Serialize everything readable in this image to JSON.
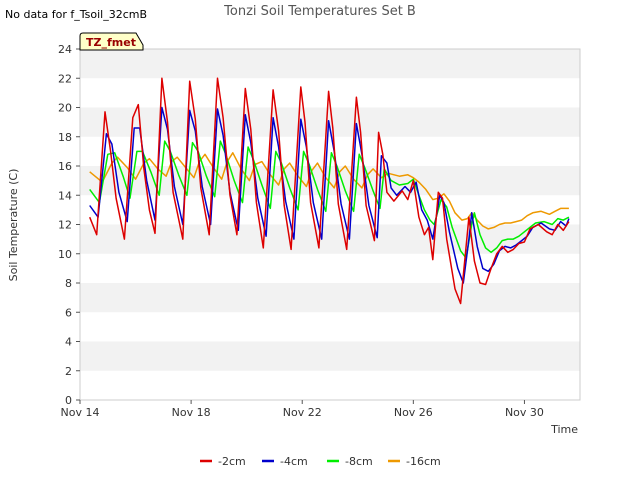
{
  "header": {
    "no_data_note": "No data for f_Tsoil_32cmB",
    "tag": "TZ_fmet"
  },
  "chart_data": {
    "type": "line",
    "title": "Tonzi Soil Temperatures Set B",
    "xlabel": "Time",
    "ylabel": "Soil Temperature (C)",
    "xlim": [
      0,
      18
    ],
    "ylim": [
      0,
      24
    ],
    "x_ticks": [
      {
        "value": 0,
        "label": "Nov 14"
      },
      {
        "value": 4,
        "label": "Nov 18"
      },
      {
        "value": 8,
        "label": "Nov 22"
      },
      {
        "value": 12,
        "label": "Nov 26"
      },
      {
        "value": 16,
        "label": "Nov 30"
      }
    ],
    "y_ticks": [
      0,
      2,
      4,
      6,
      8,
      10,
      12,
      14,
      16,
      18,
      20,
      22,
      24
    ],
    "grid": "horizontal bands",
    "legend": "bottom",
    "series": [
      {
        "name": "-2cm",
        "color": "#dd0000",
        "points": [
          [
            0.35,
            12.5
          ],
          [
            0.6,
            11.3
          ],
          [
            0.9,
            19.7
          ],
          [
            1.1,
            17.0
          ],
          [
            1.3,
            13.8
          ],
          [
            1.6,
            11.0
          ],
          [
            1.9,
            19.3
          ],
          [
            2.1,
            20.2
          ],
          [
            2.3,
            15.8
          ],
          [
            2.5,
            13.0
          ],
          [
            2.7,
            11.4
          ],
          [
            2.95,
            22.0
          ],
          [
            3.15,
            19.0
          ],
          [
            3.35,
            14.2
          ],
          [
            3.7,
            11.0
          ],
          [
            3.95,
            21.8
          ],
          [
            4.15,
            19.2
          ],
          [
            4.35,
            14.5
          ],
          [
            4.65,
            11.3
          ],
          [
            4.95,
            22.0
          ],
          [
            5.15,
            19.3
          ],
          [
            5.4,
            14.0
          ],
          [
            5.65,
            11.3
          ],
          [
            5.95,
            21.3
          ],
          [
            6.15,
            18.5
          ],
          [
            6.35,
            13.5
          ],
          [
            6.6,
            10.4
          ],
          [
            6.95,
            21.2
          ],
          [
            7.15,
            18.4
          ],
          [
            7.35,
            13.3
          ],
          [
            7.6,
            10.3
          ],
          [
            7.95,
            21.4
          ],
          [
            8.1,
            19.0
          ],
          [
            8.3,
            13.5
          ],
          [
            8.6,
            10.4
          ],
          [
            8.95,
            21.1
          ],
          [
            9.1,
            18.6
          ],
          [
            9.3,
            13.4
          ],
          [
            9.6,
            10.3
          ],
          [
            9.95,
            20.7
          ],
          [
            10.1,
            18.3
          ],
          [
            10.3,
            13.3
          ],
          [
            10.6,
            10.9
          ],
          [
            10.75,
            18.3
          ],
          [
            10.9,
            16.8
          ],
          [
            11.05,
            14.2
          ],
          [
            11.3,
            13.6
          ],
          [
            11.6,
            14.3
          ],
          [
            11.8,
            13.7
          ],
          [
            12.0,
            15.0
          ],
          [
            12.2,
            12.5
          ],
          [
            12.4,
            11.3
          ],
          [
            12.55,
            11.8
          ],
          [
            12.7,
            9.6
          ],
          [
            12.9,
            14.2
          ],
          [
            13.05,
            13.8
          ],
          [
            13.2,
            11.0
          ],
          [
            13.5,
            7.6
          ],
          [
            13.7,
            6.6
          ],
          [
            13.9,
            10.5
          ],
          [
            14.0,
            12.5
          ],
          [
            14.2,
            9.5
          ],
          [
            14.4,
            8.0
          ],
          [
            14.6,
            7.9
          ],
          [
            14.8,
            9.0
          ],
          [
            15.0,
            10.0
          ],
          [
            15.2,
            10.5
          ],
          [
            15.4,
            10.1
          ],
          [
            15.6,
            10.3
          ],
          [
            15.8,
            10.7
          ],
          [
            16.0,
            10.8
          ],
          [
            16.2,
            11.7
          ],
          [
            16.5,
            12.0
          ],
          [
            16.8,
            11.5
          ],
          [
            17.0,
            11.3
          ],
          [
            17.2,
            12.0
          ],
          [
            17.4,
            11.6
          ],
          [
            17.6,
            12.2
          ]
        ]
      },
      {
        "name": "-4cm",
        "color": "#0000cc",
        "points": [
          [
            0.35,
            13.3
          ],
          [
            0.65,
            12.5
          ],
          [
            0.95,
            18.2
          ],
          [
            1.15,
            17.5
          ],
          [
            1.4,
            14.2
          ],
          [
            1.7,
            12.2
          ],
          [
            1.95,
            18.6
          ],
          [
            2.15,
            18.6
          ],
          [
            2.4,
            15.0
          ],
          [
            2.7,
            12.3
          ],
          [
            2.95,
            20.0
          ],
          [
            3.15,
            18.5
          ],
          [
            3.4,
            14.6
          ],
          [
            3.7,
            12.0
          ],
          [
            3.95,
            19.8
          ],
          [
            4.15,
            18.4
          ],
          [
            4.4,
            14.6
          ],
          [
            4.7,
            12.0
          ],
          [
            4.95,
            19.9
          ],
          [
            5.15,
            18.1
          ],
          [
            5.4,
            14.2
          ],
          [
            5.7,
            11.6
          ],
          [
            5.95,
            19.5
          ],
          [
            6.15,
            17.6
          ],
          [
            6.4,
            13.8
          ],
          [
            6.7,
            11.2
          ],
          [
            6.95,
            19.3
          ],
          [
            7.15,
            17.3
          ],
          [
            7.4,
            13.6
          ],
          [
            7.7,
            11.0
          ],
          [
            7.95,
            19.2
          ],
          [
            8.15,
            17.3
          ],
          [
            8.4,
            13.5
          ],
          [
            8.7,
            11.0
          ],
          [
            8.95,
            19.1
          ],
          [
            9.15,
            17.0
          ],
          [
            9.4,
            13.4
          ],
          [
            9.7,
            11.0
          ],
          [
            9.95,
            18.9
          ],
          [
            10.15,
            16.8
          ],
          [
            10.4,
            13.3
          ],
          [
            10.7,
            11.1
          ],
          [
            10.85,
            16.7
          ],
          [
            11.05,
            16.2
          ],
          [
            11.2,
            14.5
          ],
          [
            11.4,
            14.0
          ],
          [
            11.7,
            14.6
          ],
          [
            11.9,
            14.2
          ],
          [
            12.1,
            14.9
          ],
          [
            12.3,
            13.0
          ],
          [
            12.5,
            12.3
          ],
          [
            12.7,
            11.0
          ],
          [
            12.95,
            14.0
          ],
          [
            13.1,
            13.5
          ],
          [
            13.3,
            11.5
          ],
          [
            13.6,
            9.0
          ],
          [
            13.8,
            8.0
          ],
          [
            14.0,
            11.0
          ],
          [
            14.1,
            12.8
          ],
          [
            14.3,
            10.5
          ],
          [
            14.5,
            9.0
          ],
          [
            14.7,
            8.8
          ],
          [
            14.9,
            9.3
          ],
          [
            15.1,
            10.2
          ],
          [
            15.3,
            10.5
          ],
          [
            15.5,
            10.4
          ],
          [
            15.7,
            10.6
          ],
          [
            15.9,
            10.9
          ],
          [
            16.1,
            11.2
          ],
          [
            16.3,
            11.8
          ],
          [
            16.6,
            12.1
          ],
          [
            16.9,
            11.7
          ],
          [
            17.1,
            11.6
          ],
          [
            17.3,
            12.2
          ],
          [
            17.5,
            11.9
          ],
          [
            17.6,
            12.4
          ]
        ]
      },
      {
        "name": "-8cm",
        "color": "#00ee00",
        "points": [
          [
            0.35,
            14.4
          ],
          [
            0.7,
            13.5
          ],
          [
            1.0,
            16.8
          ],
          [
            1.25,
            16.9
          ],
          [
            1.55,
            15.3
          ],
          [
            1.8,
            13.8
          ],
          [
            2.05,
            17.0
          ],
          [
            2.25,
            17.0
          ],
          [
            2.55,
            15.6
          ],
          [
            2.85,
            14.0
          ],
          [
            3.05,
            17.7
          ],
          [
            3.25,
            17.0
          ],
          [
            3.55,
            15.4
          ],
          [
            3.85,
            14.0
          ],
          [
            4.05,
            17.6
          ],
          [
            4.25,
            17.0
          ],
          [
            4.55,
            15.3
          ],
          [
            4.85,
            13.9
          ],
          [
            5.05,
            17.7
          ],
          [
            5.25,
            16.8
          ],
          [
            5.55,
            15.0
          ],
          [
            5.85,
            13.5
          ],
          [
            6.05,
            17.3
          ],
          [
            6.25,
            16.4
          ],
          [
            6.55,
            14.7
          ],
          [
            6.85,
            13.1
          ],
          [
            7.05,
            17.0
          ],
          [
            7.25,
            16.2
          ],
          [
            7.55,
            14.5
          ],
          [
            7.85,
            13.0
          ],
          [
            8.05,
            17.0
          ],
          [
            8.25,
            16.1
          ],
          [
            8.55,
            14.4
          ],
          [
            8.85,
            12.9
          ],
          [
            9.05,
            16.9
          ],
          [
            9.25,
            16.0
          ],
          [
            9.55,
            14.3
          ],
          [
            9.85,
            12.9
          ],
          [
            10.05,
            16.8
          ],
          [
            10.25,
            15.9
          ],
          [
            10.55,
            14.3
          ],
          [
            10.8,
            13.1
          ],
          [
            10.95,
            15.8
          ],
          [
            11.2,
            15.0
          ],
          [
            11.5,
            14.7
          ],
          [
            11.8,
            14.8
          ],
          [
            12.0,
            15.1
          ],
          [
            12.2,
            14.0
          ],
          [
            12.4,
            13.0
          ],
          [
            12.6,
            12.3
          ],
          [
            12.75,
            12.0
          ],
          [
            13.0,
            13.7
          ],
          [
            13.2,
            13.2
          ],
          [
            13.4,
            11.8
          ],
          [
            13.7,
            10.2
          ],
          [
            13.9,
            9.7
          ],
          [
            14.1,
            12.0
          ],
          [
            14.2,
            12.8
          ],
          [
            14.4,
            11.3
          ],
          [
            14.6,
            10.4
          ],
          [
            14.8,
            10.1
          ],
          [
            15.0,
            10.4
          ],
          [
            15.2,
            10.9
          ],
          [
            15.4,
            11.0
          ],
          [
            15.6,
            11.0
          ],
          [
            15.8,
            11.2
          ],
          [
            16.0,
            11.5
          ],
          [
            16.2,
            11.8
          ],
          [
            16.4,
            12.1
          ],
          [
            16.7,
            12.2
          ],
          [
            17.0,
            12.0
          ],
          [
            17.2,
            12.4
          ],
          [
            17.4,
            12.3
          ],
          [
            17.6,
            12.5
          ]
        ]
      },
      {
        "name": "-16cm",
        "color": "#ee9900",
        "points": [
          [
            0.35,
            15.6
          ],
          [
            0.8,
            14.9
          ],
          [
            1.15,
            16.2
          ],
          [
            1.35,
            16.6
          ],
          [
            1.7,
            15.9
          ],
          [
            2.0,
            15.1
          ],
          [
            2.3,
            16.2
          ],
          [
            2.5,
            16.5
          ],
          [
            2.8,
            15.8
          ],
          [
            3.1,
            15.3
          ],
          [
            3.3,
            16.3
          ],
          [
            3.5,
            16.6
          ],
          [
            3.8,
            15.9
          ],
          [
            4.1,
            15.2
          ],
          [
            4.3,
            16.3
          ],
          [
            4.5,
            16.8
          ],
          [
            4.8,
            15.9
          ],
          [
            5.1,
            15.1
          ],
          [
            5.3,
            16.3
          ],
          [
            5.5,
            16.9
          ],
          [
            5.8,
            15.8
          ],
          [
            6.1,
            15.0
          ],
          [
            6.3,
            16.1
          ],
          [
            6.55,
            16.3
          ],
          [
            6.85,
            15.4
          ],
          [
            7.15,
            14.7
          ],
          [
            7.35,
            15.8
          ],
          [
            7.55,
            16.2
          ],
          [
            7.85,
            15.3
          ],
          [
            8.15,
            14.6
          ],
          [
            8.35,
            15.7
          ],
          [
            8.55,
            16.2
          ],
          [
            8.85,
            15.2
          ],
          [
            9.15,
            14.5
          ],
          [
            9.35,
            15.6
          ],
          [
            9.55,
            16.0
          ],
          [
            9.85,
            15.1
          ],
          [
            10.15,
            14.5
          ],
          [
            10.35,
            15.4
          ],
          [
            10.55,
            15.8
          ],
          [
            10.85,
            15.2
          ],
          [
            11.1,
            15.5
          ],
          [
            11.5,
            15.3
          ],
          [
            11.8,
            15.4
          ],
          [
            12.0,
            15.2
          ],
          [
            12.2,
            14.9
          ],
          [
            12.45,
            14.4
          ],
          [
            12.7,
            13.7
          ],
          [
            12.9,
            13.8
          ],
          [
            13.1,
            14.1
          ],
          [
            13.3,
            13.6
          ],
          [
            13.5,
            12.8
          ],
          [
            13.75,
            12.3
          ],
          [
            13.95,
            12.4
          ],
          [
            14.1,
            12.8
          ],
          [
            14.3,
            12.3
          ],
          [
            14.5,
            11.9
          ],
          [
            14.7,
            11.7
          ],
          [
            14.9,
            11.8
          ],
          [
            15.1,
            12.0
          ],
          [
            15.3,
            12.1
          ],
          [
            15.5,
            12.1
          ],
          [
            15.7,
            12.2
          ],
          [
            15.9,
            12.3
          ],
          [
            16.1,
            12.6
          ],
          [
            16.3,
            12.8
          ],
          [
            16.6,
            12.9
          ],
          [
            16.9,
            12.7
          ],
          [
            17.1,
            12.9
          ],
          [
            17.3,
            13.1
          ],
          [
            17.6,
            13.1
          ]
        ]
      }
    ]
  }
}
